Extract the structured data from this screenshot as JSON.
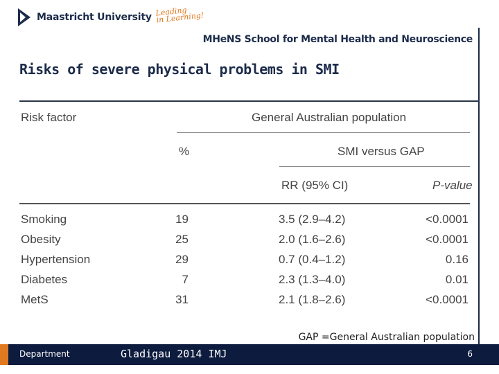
{
  "header": {
    "university": "Maastricht University",
    "tagline_1": "Leading",
    "tagline_2": "in Learning!",
    "school": "MHeNS School for Mental Health and Neuroscience"
  },
  "slide": {
    "title": "Risks of severe physical problems in SMI"
  },
  "table": {
    "col_risk": "Risk factor",
    "col_group": "General Australian population",
    "col_pct": "%",
    "col_compare": "SMI versus GAP",
    "col_rr": "RR (95% CI)",
    "col_p": "P-value",
    "rows": [
      {
        "factor": "Smoking",
        "pct": "19",
        "rr": "3.5 (2.9–4.2)",
        "p": "<0.0001"
      },
      {
        "factor": "Obesity",
        "pct": "25",
        "rr": "2.0 (1.6–2.6)",
        "p": "<0.0001"
      },
      {
        "factor": "Hypertension",
        "pct": "29",
        "rr": "0.7 (0.4–1.2)",
        "p": "0.16"
      },
      {
        "factor": "Diabetes",
        "pct": "7",
        "rr": "2.3 (1.3–4.0)",
        "p": "0.01"
      },
      {
        "factor": "MetS",
        "pct": "31",
        "rr": "2.1 (1.8–2.6)",
        "p": "<0.0001"
      }
    ]
  },
  "footnote": "GAP =General Australian population",
  "footer": {
    "department": "Department",
    "citation": "Gladigau 2014 IMJ",
    "page": "6"
  },
  "colors": {
    "navy": "#0d1b3e",
    "orange": "#e07a20"
  }
}
